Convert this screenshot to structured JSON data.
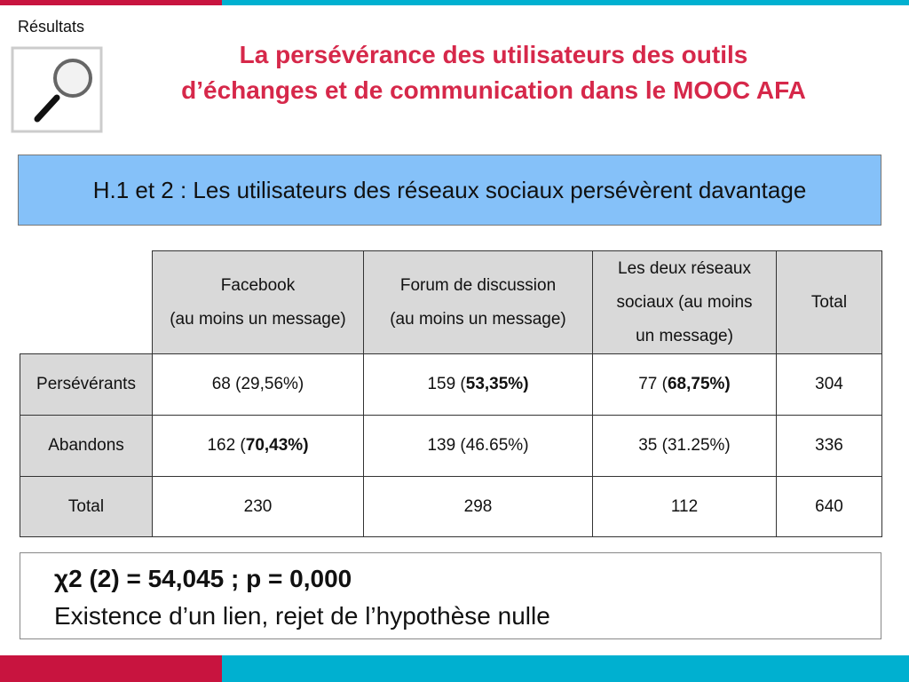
{
  "header": {
    "section": "Résultats",
    "title": [
      "La persévérance des utilisateurs des outils",
      "d’échanges et de communication dans le MOOC AFA"
    ]
  },
  "banner": {
    "text": "H.1 et 2 : Les utilisateurs des réseaux sociaux persévèrent davantage"
  },
  "table": {
    "columns": [
      [
        "Facebook",
        "(au moins un message)"
      ],
      [
        "Forum de discussion",
        "(au moins un message)"
      ],
      [
        "Les deux réseaux",
        "sociaux (au moins",
        "un message)"
      ],
      [
        "Total"
      ]
    ],
    "rows": [
      {
        "label": "Persévérants",
        "cells": [
          [
            {
              "text": "68 (29,56%)"
            }
          ],
          [
            {
              "text": "159 ("
            },
            {
              "text": "53,35%)",
              "bold": true
            }
          ],
          [
            {
              "text": "77 ("
            },
            {
              "text": "68,75%)",
              "bold": true
            }
          ],
          [
            {
              "text": "304"
            }
          ]
        ]
      },
      {
        "label": "Abandons",
        "cells": [
          [
            {
              "text": "162 ("
            },
            {
              "text": "70,43%)",
              "bold": true
            }
          ],
          [
            {
              "text": "139 (46.65%)"
            }
          ],
          [
            {
              "text": "35 (31.25%)"
            }
          ],
          [
            {
              "text": "336"
            }
          ]
        ]
      },
      {
        "label": "Total",
        "cells": [
          [
            {
              "text": "230"
            }
          ],
          [
            {
              "text": "298"
            }
          ],
          [
            {
              "text": "112"
            }
          ],
          [
            {
              "text": "640"
            }
          ]
        ]
      }
    ]
  },
  "footer": {
    "lines": [
      "χ2 (2) = 54,045 ; p = 0,000",
      "Existence d’un lien, rejet de l’hypothèse nulle"
    ]
  }
}
